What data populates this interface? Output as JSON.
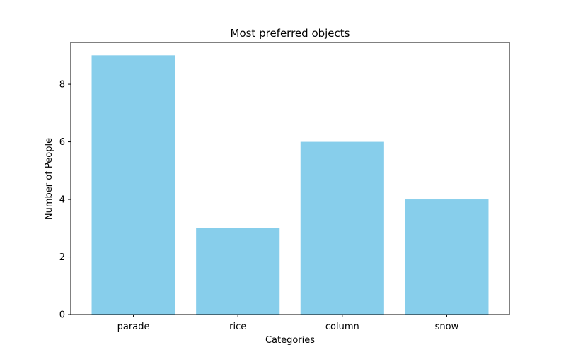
{
  "chart_data": {
    "type": "bar",
    "title": "Most preferred objects",
    "xlabel": "Categories",
    "ylabel": "Number of People",
    "categories": [
      "parade",
      "rice",
      "column",
      "snow"
    ],
    "values": [
      9,
      3,
      6,
      4
    ],
    "yticks": [
      0,
      2,
      4,
      6,
      8
    ],
    "ylim": [
      0,
      9.45
    ],
    "grid": false,
    "bar_color": "#87ceeb"
  }
}
